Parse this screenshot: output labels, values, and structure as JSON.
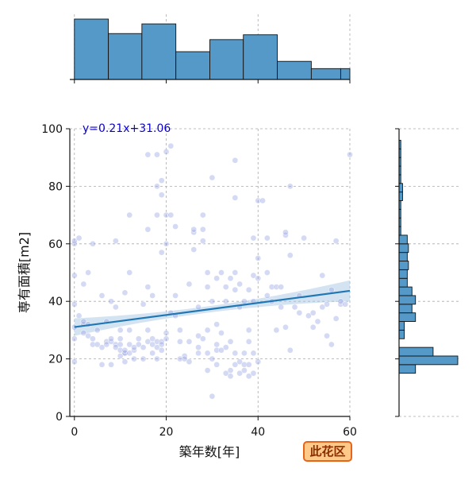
{
  "chart_data": {
    "type": "scatter",
    "xlabel": "築年数[年]",
    "ylabel": "専有面積[m2]",
    "xlim": [
      -1,
      60
    ],
    "ylim": [
      0,
      100
    ],
    "x_ticks": [
      0,
      20,
      40,
      60
    ],
    "y_ticks": [
      0,
      20,
      40,
      60,
      80,
      100
    ],
    "grid": true,
    "annotation": "y=0.21x+31.06",
    "regression": {
      "slope": 0.21,
      "intercept": 31.06,
      "x_range": [
        0,
        60
      ]
    },
    "colors": {
      "points": "#9aa6e4",
      "points_dense": "#1b1fb0",
      "regression_line": "#1f77b4",
      "confidence_band": "#a8c8e4",
      "histogram": "#5499c7",
      "annotation": "#0a00c8"
    },
    "points": [
      [
        0,
        19
      ],
      [
        0,
        27
      ],
      [
        0,
        31
      ],
      [
        0,
        39
      ],
      [
        0,
        49
      ],
      [
        0,
        60
      ],
      [
        0,
        61
      ],
      [
        1,
        35
      ],
      [
        1,
        62
      ],
      [
        2,
        29
      ],
      [
        2,
        32
      ],
      [
        2,
        46
      ],
      [
        2,
        33
      ],
      [
        3,
        50
      ],
      [
        3,
        32
      ],
      [
        3,
        28
      ],
      [
        4,
        25
      ],
      [
        4,
        27
      ],
      [
        4,
        60
      ],
      [
        5,
        25
      ],
      [
        5,
        30
      ],
      [
        6,
        18
      ],
      [
        6,
        24
      ],
      [
        6,
        42
      ],
      [
        7,
        26
      ],
      [
        7,
        25
      ],
      [
        7,
        33
      ],
      [
        8,
        18
      ],
      [
        8,
        26
      ],
      [
        8,
        27
      ],
      [
        8,
        40
      ],
      [
        9,
        25
      ],
      [
        9,
        24
      ],
      [
        9,
        38
      ],
      [
        9,
        61
      ],
      [
        10,
        21
      ],
      [
        10,
        23
      ],
      [
        10,
        25
      ],
      [
        10,
        27
      ],
      [
        10,
        30
      ],
      [
        11,
        19
      ],
      [
        11,
        22
      ],
      [
        11,
        22
      ],
      [
        11,
        23
      ],
      [
        11,
        43
      ],
      [
        12,
        22
      ],
      [
        12,
        25
      ],
      [
        12,
        30
      ],
      [
        12,
        50
      ],
      [
        12,
        70
      ],
      [
        13,
        20
      ],
      [
        13,
        23
      ],
      [
        13,
        24
      ],
      [
        14,
        25
      ],
      [
        14,
        27
      ],
      [
        15,
        20
      ],
      [
        15,
        24
      ],
      [
        15,
        39
      ],
      [
        16,
        26
      ],
      [
        16,
        30
      ],
      [
        16,
        45
      ],
      [
        16,
        65
      ],
      [
        16,
        91
      ],
      [
        17,
        22
      ],
      [
        17,
        25
      ],
      [
        17,
        27
      ],
      [
        17,
        42
      ],
      [
        18,
        20
      ],
      [
        18,
        24
      ],
      [
        18,
        26
      ],
      [
        18,
        91
      ],
      [
        18,
        70
      ],
      [
        18,
        80
      ],
      [
        19,
        26
      ],
      [
        19,
        25
      ],
      [
        19,
        23
      ],
      [
        19,
        57
      ],
      [
        19,
        77
      ],
      [
        19,
        82
      ],
      [
        20,
        27
      ],
      [
        20,
        29
      ],
      [
        20,
        60
      ],
      [
        20,
        70
      ],
      [
        20,
        92
      ],
      [
        21,
        70
      ],
      [
        21,
        94
      ],
      [
        21,
        36
      ],
      [
        22,
        42
      ],
      [
        22,
        66
      ],
      [
        22,
        35
      ],
      [
        23,
        20
      ],
      [
        23,
        26
      ],
      [
        23,
        30
      ],
      [
        24,
        21
      ],
      [
        24,
        20
      ],
      [
        25,
        19
      ],
      [
        25,
        26
      ],
      [
        25,
        46
      ],
      [
        26,
        58
      ],
      [
        26,
        64
      ],
      [
        26,
        65
      ],
      [
        27,
        22
      ],
      [
        27,
        24
      ],
      [
        27,
        38
      ],
      [
        27,
        28
      ],
      [
        28,
        27
      ],
      [
        28,
        61
      ],
      [
        28,
        70
      ],
      [
        28,
        65
      ],
      [
        29,
        30
      ],
      [
        29,
        45
      ],
      [
        29,
        50
      ],
      [
        29,
        16
      ],
      [
        29,
        22
      ],
      [
        30,
        7
      ],
      [
        30,
        20
      ],
      [
        30,
        40
      ],
      [
        30,
        83
      ],
      [
        31,
        18
      ],
      [
        31,
        23
      ],
      [
        31,
        25
      ],
      [
        31,
        32
      ],
      [
        31,
        48
      ],
      [
        32,
        23
      ],
      [
        32,
        29
      ],
      [
        32,
        50
      ],
      [
        33,
        15
      ],
      [
        33,
        24
      ],
      [
        33,
        40
      ],
      [
        33,
        45
      ],
      [
        34,
        14
      ],
      [
        34,
        16
      ],
      [
        34,
        26
      ],
      [
        34,
        48
      ],
      [
        35,
        18
      ],
      [
        35,
        22
      ],
      [
        35,
        44
      ],
      [
        35,
        50
      ],
      [
        35,
        76
      ],
      [
        35,
        89
      ],
      [
        36,
        15
      ],
      [
        36,
        19
      ],
      [
        36,
        38
      ],
      [
        36,
        46
      ],
      [
        37,
        16
      ],
      [
        37,
        18
      ],
      [
        37,
        22
      ],
      [
        37,
        40
      ],
      [
        38,
        14
      ],
      [
        38,
        18
      ],
      [
        38,
        26
      ],
      [
        38,
        30
      ],
      [
        38,
        44
      ],
      [
        39,
        15
      ],
      [
        39,
        22
      ],
      [
        39,
        40
      ],
      [
        39,
        49
      ],
      [
        39,
        62
      ],
      [
        40,
        19
      ],
      [
        40,
        48
      ],
      [
        40,
        55
      ],
      [
        40,
        75
      ],
      [
        41,
        75
      ],
      [
        42,
        42
      ],
      [
        42,
        50
      ],
      [
        42,
        62
      ],
      [
        43,
        40
      ],
      [
        43,
        45
      ],
      [
        44,
        30
      ],
      [
        44,
        45
      ],
      [
        45,
        38
      ],
      [
        45,
        45
      ],
      [
        46,
        31
      ],
      [
        46,
        63
      ],
      [
        46,
        64
      ],
      [
        47,
        23
      ],
      [
        47,
        56
      ],
      [
        47,
        80
      ],
      [
        48,
        38
      ],
      [
        49,
        36
      ],
      [
        49,
        42
      ],
      [
        50,
        62
      ],
      [
        51,
        35
      ],
      [
        52,
        31
      ],
      [
        52,
        36
      ],
      [
        53,
        33
      ],
      [
        54,
        38
      ],
      [
        54,
        49
      ],
      [
        55,
        28
      ],
      [
        55,
        39
      ],
      [
        56,
        25
      ],
      [
        56,
        44
      ],
      [
        57,
        61
      ],
      [
        57,
        34
      ],
      [
        58,
        39
      ],
      [
        58,
        40
      ],
      [
        59,
        39
      ],
      [
        60,
        91
      ]
    ],
    "histogram_x": {
      "bin_edges": [
        0,
        7.4,
        14.7,
        22.1,
        29.5,
        36.8,
        44.2,
        51.6,
        58,
        60
      ],
      "relative_heights": [
        1.0,
        0.76,
        0.92,
        0.46,
        0.66,
        0.74,
        0.3,
        0.18,
        0.18
      ]
    },
    "histogram_y": {
      "bin_edges": [
        0,
        3,
        6,
        9,
        12,
        15,
        18,
        21,
        24,
        27,
        30,
        33,
        36,
        39,
        42,
        45,
        48,
        51,
        54,
        57,
        60,
        63,
        66,
        69,
        72,
        75,
        78,
        81,
        84,
        87,
        90,
        93,
        96,
        100
      ],
      "relative_widths": [
        0,
        0,
        0,
        0,
        0,
        0.28,
        1.0,
        0.58,
        0.0,
        0.09,
        0.09,
        0.28,
        0.22,
        0.28,
        0.22,
        0.14,
        0.14,
        0.16,
        0.14,
        0.16,
        0.14,
        0.03,
        0.03,
        0.03,
        0.03,
        0.06,
        0.06,
        0.03,
        0.03,
        0.03,
        0.03,
        0.03,
        0.0
      ]
    }
  },
  "badge": {
    "label": "此花区"
  }
}
